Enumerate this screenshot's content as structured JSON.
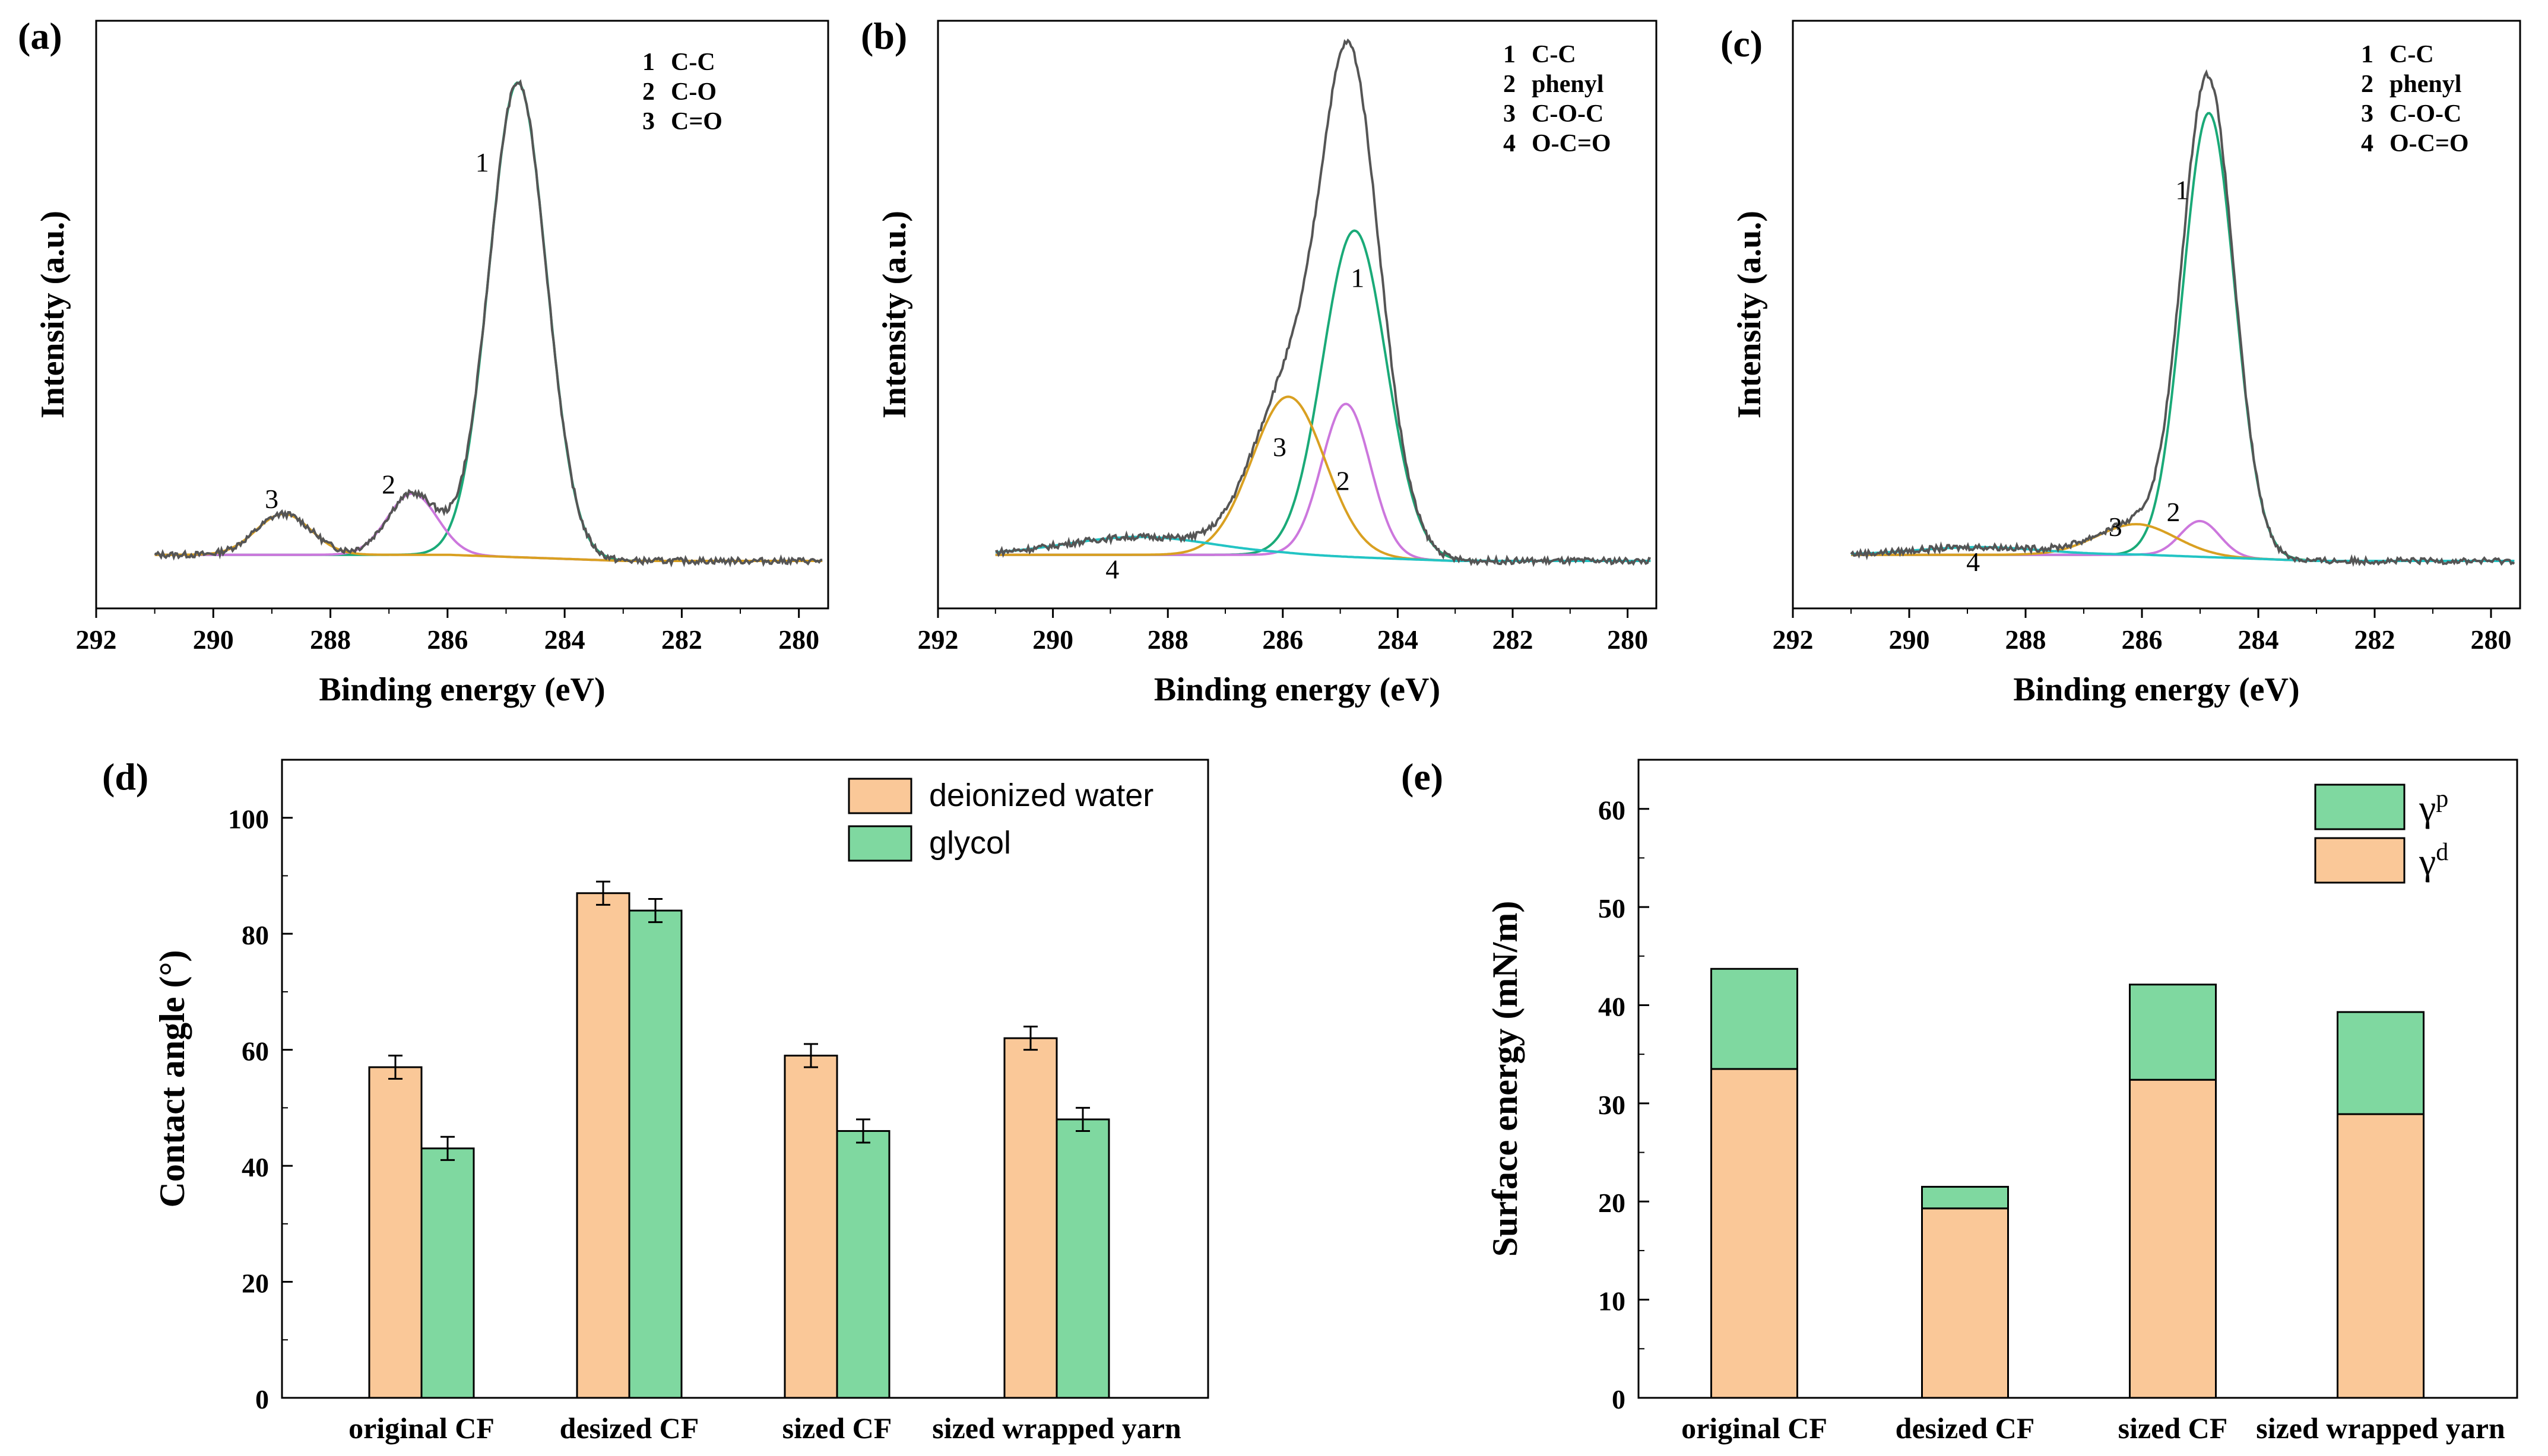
{
  "chart_data": [
    {
      "id": "a",
      "type": "line",
      "panel_label": "(a)",
      "xlabel": "Binding energy (eV)",
      "ylabel": "Intensity (a.u.)",
      "xlim": [
        292,
        279.5
      ],
      "xticks": [
        "292",
        "290",
        "288",
        "286",
        "284",
        "282",
        "280"
      ],
      "legend": [
        {
          "num": "1",
          "label": "C-C"
        },
        {
          "num": "2",
          "label": "C-O"
        },
        {
          "num": "3",
          "label": "C=O"
        }
      ],
      "peaks": [
        {
          "num": "1",
          "name": "C-C",
          "center": 284.8,
          "height": 0.93,
          "fwhm": 1.15,
          "color": "#1aaa78"
        },
        {
          "num": "2",
          "name": "C-O",
          "center": 286.6,
          "height": 0.12,
          "fwhm": 1.0,
          "color": "#cc77dd"
        },
        {
          "num": "3",
          "name": "C=O",
          "center": 288.8,
          "height": 0.08,
          "fwhm": 1.1,
          "color": "#d9a021"
        }
      ],
      "envelope_color": "#555555"
    },
    {
      "id": "b",
      "type": "line",
      "panel_label": "(b)",
      "xlabel": "Binding energy (eV)",
      "ylabel": "Intensity (a.u.)",
      "xlim": [
        292,
        279.5
      ],
      "xticks": [
        "292",
        "290",
        "288",
        "286",
        "284",
        "282",
        "280"
      ],
      "legend": [
        {
          "num": "1",
          "label": "C-C"
        },
        {
          "num": "2",
          "label": "phenyl"
        },
        {
          "num": "3",
          "label": "C-O-C"
        },
        {
          "num": "4",
          "label": "O-C=O"
        }
      ],
      "peaks": [
        {
          "num": "1",
          "name": "C-C",
          "center": 284.75,
          "height": 0.64,
          "fwhm": 1.3,
          "color": "#1aaa78"
        },
        {
          "num": "2",
          "name": "phenyl",
          "center": 284.9,
          "height": 0.3,
          "fwhm": 1.0,
          "color": "#cc77dd"
        },
        {
          "num": "3",
          "name": "C-O-C",
          "center": 285.9,
          "height": 0.31,
          "fwhm": 1.5,
          "color": "#d9a021"
        },
        {
          "num": "4",
          "name": "O-C=O",
          "center": 288.5,
          "height": 0.035,
          "fwhm": 3.0,
          "color": "#22c4c4"
        }
      ],
      "envelope_color": "#555555"
    },
    {
      "id": "c",
      "type": "line",
      "panel_label": "(c)",
      "xlabel": "Binding energy (eV)",
      "ylabel": "Intensity (a.u.)",
      "xlim": [
        292,
        279.5
      ],
      "xticks": [
        "292",
        "290",
        "288",
        "286",
        "284",
        "282",
        "280"
      ],
      "legend": [
        {
          "num": "1",
          "label": "C-C"
        },
        {
          "num": "2",
          "label": "phenyl"
        },
        {
          "num": "3",
          "label": "C-O-C"
        },
        {
          "num": "4",
          "label": "O-C=O"
        }
      ],
      "peaks": [
        {
          "num": "1",
          "name": "C-C",
          "center": 284.85,
          "height": 0.87,
          "fwhm": 1.05,
          "color": "#1aaa78"
        },
        {
          "num": "2",
          "name": "phenyl",
          "center": 285.0,
          "height": 0.07,
          "fwhm": 0.8,
          "color": "#cc77dd"
        },
        {
          "num": "3",
          "name": "C-O-C",
          "center": 286.1,
          "height": 0.06,
          "fwhm": 1.6,
          "color": "#d9a021"
        },
        {
          "num": "4",
          "name": "O-C=O",
          "center": 288.8,
          "height": 0.015,
          "fwhm": 2.5,
          "color": "#22c4c4"
        }
      ],
      "envelope_color": "#555555"
    },
    {
      "id": "d",
      "type": "bar",
      "panel_label": "(d)",
      "ylabel": "Contact angle (°)",
      "xlabel": "",
      "ylim": [
        0,
        110
      ],
      "yticks": [
        "0",
        "20",
        "40",
        "60",
        "80",
        "100"
      ],
      "categories": [
        "original CF",
        "desized CF",
        "sized CF",
        "sized wrapped yarn"
      ],
      "series": [
        {
          "name": "deionized water",
          "values": [
            57,
            87,
            59,
            62
          ],
          "errors": [
            2,
            2,
            2,
            2
          ],
          "color": "#fac898"
        },
        {
          "name": "glycol",
          "values": [
            43,
            84,
            46,
            48
          ],
          "errors": [
            2,
            2,
            2,
            2
          ],
          "color": "#7fd8a0"
        }
      ]
    },
    {
      "id": "e",
      "type": "bar",
      "stacked": true,
      "panel_label": "(e)",
      "ylabel": "Surface energy (mN/m)",
      "xlabel": "",
      "ylim": [
        0,
        65
      ],
      "yticks": [
        "0",
        "10",
        "20",
        "30",
        "40",
        "50",
        "60"
      ],
      "categories": [
        "original CF",
        "desized CF",
        "sized CF",
        "sized wrapped yarn"
      ],
      "series": [
        {
          "name": "γd",
          "base": "γ",
          "sup": "d",
          "values": [
            33.5,
            19.3,
            32.4,
            28.9
          ],
          "color": "#fac898"
        },
        {
          "name": "γp",
          "base": "γ",
          "sup": "p",
          "values": [
            10.2,
            2.2,
            9.7,
            10.4
          ],
          "color": "#7fd8a0"
        }
      ]
    }
  ]
}
